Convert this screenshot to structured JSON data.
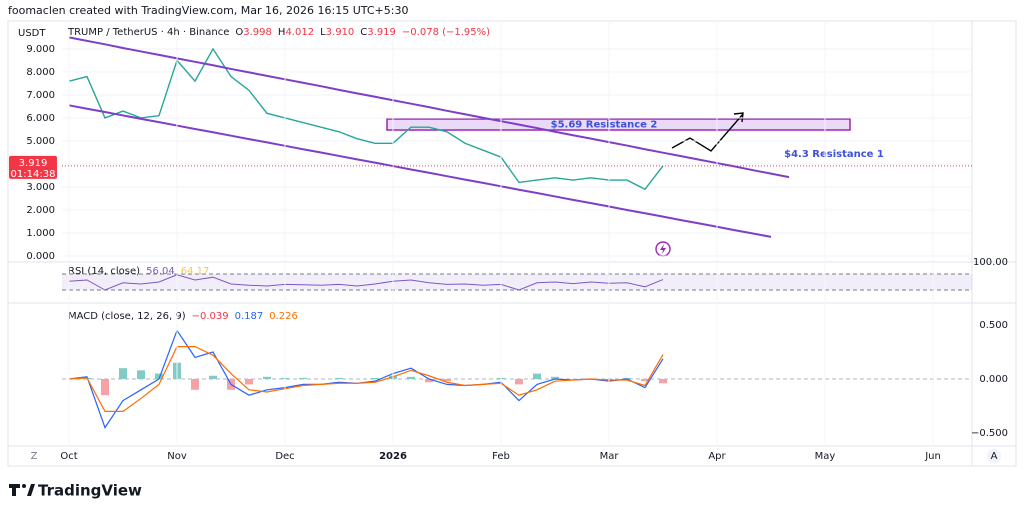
{
  "header": "foomaclen created with TradingView.com, Mar 16, 2026 16:15 UTC+5:30",
  "brand": "TradingView",
  "currency": "USDT",
  "buttons": [
    "Z",
    "A"
  ],
  "chart_data": [
    {
      "type": "line",
      "legend": {
        "symbol": "TRUMP / TetherUS · 4h · Binance",
        "ohlc": [
          {
            "label": "O",
            "value": "3.998"
          },
          {
            "label": "H",
            "value": "4.012"
          },
          {
            "label": "L",
            "value": "3.910"
          },
          {
            "label": "C",
            "value": "3.919"
          }
        ],
        "change": "−0.078 (−1.95%)"
      },
      "categories": [
        "Oct",
        null,
        null,
        null,
        null,
        null,
        "Nov",
        null,
        null,
        null,
        null,
        null,
        "Dec",
        null,
        null,
        null,
        null,
        null,
        "2026",
        null,
        null,
        null,
        null,
        null,
        "Feb",
        null,
        null,
        null,
        null,
        null,
        "Mar",
        null,
        null,
        null,
        null,
        null,
        "Apr",
        null,
        null,
        null,
        null,
        null,
        "May",
        null,
        null,
        null,
        null,
        null,
        "Jun",
        null,
        null
      ],
      "series": [
        {
          "color": "#26a69a",
          "width": 1.4,
          "values": [
            7.6,
            7.8,
            6.0,
            6.3,
            6.0,
            6.1,
            8.5,
            7.6,
            9.0,
            7.8,
            7.2,
            6.2,
            6.0,
            5.8,
            5.6,
            5.4,
            5.1,
            4.9,
            4.9,
            5.6,
            5.6,
            5.4,
            4.9,
            4.6,
            4.3,
            3.2,
            3.3,
            3.4,
            3.3,
            3.4,
            3.3,
            3.3,
            2.9,
            3.919,
            null,
            null,
            null,
            null,
            null,
            null,
            null,
            null,
            null,
            null,
            null,
            null,
            null,
            null,
            null,
            null,
            null
          ]
        },
        {
          "color": "#7e3fc6",
          "width": 2,
          "values": [
            9.5,
            9.35,
            9.2,
            9.04,
            8.89,
            8.74,
            8.59,
            8.44,
            8.29,
            8.13,
            7.98,
            7.83,
            7.68,
            7.53,
            7.38,
            7.22,
            7.07,
            6.92,
            6.77,
            6.62,
            6.47,
            6.31,
            6.16,
            6.01,
            5.86,
            5.71,
            5.56,
            5.4,
            5.25,
            5.1,
            4.95,
            4.8,
            4.64,
            4.49,
            4.34,
            4.19,
            4.04,
            3.89,
            3.73,
            3.58,
            3.43,
            null,
            null,
            null,
            null,
            null,
            null,
            null,
            null,
            null,
            null
          ]
        },
        {
          "color": "#7e3fc6",
          "width": 2,
          "values": [
            6.55,
            6.4,
            6.26,
            6.11,
            5.96,
            5.82,
            5.67,
            5.52,
            5.38,
            5.23,
            5.08,
            4.94,
            4.79,
            4.64,
            4.5,
            4.35,
            4.2,
            4.06,
            3.91,
            3.76,
            3.62,
            3.47,
            3.32,
            3.18,
            3.03,
            2.88,
            2.74,
            2.59,
            2.44,
            2.3,
            2.15,
            2.0,
            1.86,
            1.71,
            1.56,
            1.42,
            1.27,
            1.12,
            0.98,
            0.83,
            null,
            null,
            null,
            null,
            null,
            null,
            null,
            null,
            null,
            null,
            null
          ]
        }
      ],
      "last_price": 3.919,
      "last_price_color": "#f23645",
      "countdown": "01:14:38",
      "annotations": [
        "$5.69 Resistance 2",
        "$4.3 Resistance 1"
      ],
      "ylim": [
        -0.26,
        10.17
      ],
      "yticks": [
        {
          "value": 0,
          "label": "0.000"
        },
        {
          "value": 1,
          "label": "1.000"
        },
        {
          "value": 2,
          "label": "2.000"
        },
        {
          "value": 3,
          "label": "3.000"
        },
        {
          "value": 4,
          "label": "4.000"
        },
        {
          "value": 5,
          "label": "5.000"
        },
        {
          "value": 6,
          "label": "6.000"
        },
        {
          "value": 7,
          "label": "7.000"
        },
        {
          "value": 8,
          "label": "8.000"
        },
        {
          "value": 9,
          "label": "9.000"
        }
      ],
      "grid": true
    },
    {
      "type": "line",
      "legend": {
        "title": "RSI (14, close)",
        "values": [
          "56.04",
          "64.17"
        ],
        "colors": [
          "#7e57c2",
          "#f7c948"
        ]
      },
      "series": [
        {
          "color": "#7e57c2",
          "width": 1,
          "values": [
            52,
            55,
            30,
            48,
            45,
            50,
            68,
            55,
            62,
            45,
            42,
            40,
            44,
            43,
            42,
            44,
            40,
            45,
            52,
            55,
            48,
            44,
            45,
            42,
            44,
            30,
            48,
            50,
            46,
            50,
            47,
            48,
            38,
            56.04
          ]
        }
      ],
      "bands": [
        70,
        30
      ],
      "ylim": [
        0,
        100
      ],
      "yticks": [
        {
          "value": 100,
          "label": "100.00"
        }
      ]
    },
    {
      "type": "macd",
      "legend": {
        "title": "MACD (close, 12, 26, 9)",
        "values": [
          "−0.039",
          "0.187",
          "0.226"
        ],
        "colors": [
          "#f23645",
          "#2962ff",
          "#ff6d00"
        ]
      },
      "histogram": {
        "color": "#80cbc4",
        "negative_color": "#f7a1a6",
        "values": [
          0,
          0.01,
          -0.15,
          0.1,
          0.08,
          0.05,
          0.15,
          -0.1,
          0.03,
          -0.1,
          -0.05,
          0.02,
          0.01,
          0.01,
          0,
          0.01,
          0,
          0.01,
          0.03,
          0.02,
          -0.03,
          -0.02,
          0,
          0,
          0.01,
          -0.05,
          0.05,
          0.02,
          0,
          0,
          -0.01,
          0.01,
          -0.02,
          -0.039
        ]
      },
      "series": [
        {
          "color": "#2962ff",
          "width": 1.2,
          "values": [
            0.0,
            0.02,
            -0.45,
            -0.2,
            -0.1,
            0.0,
            0.45,
            0.2,
            0.25,
            -0.05,
            -0.15,
            -0.1,
            -0.08,
            -0.05,
            -0.05,
            -0.03,
            -0.04,
            -0.02,
            0.05,
            0.1,
            0.0,
            -0.05,
            -0.06,
            -0.05,
            -0.03,
            -0.2,
            -0.05,
            0.0,
            -0.01,
            0.0,
            -0.02,
            0.0,
            -0.08,
            0.187
          ]
        },
        {
          "color": "#ff6d00",
          "width": 1.2,
          "values": [
            0.0,
            0.01,
            -0.3,
            -0.3,
            -0.18,
            -0.05,
            0.3,
            0.3,
            0.22,
            0.05,
            -0.1,
            -0.12,
            -0.09,
            -0.06,
            -0.05,
            -0.04,
            -0.04,
            -0.03,
            0.02,
            0.08,
            0.03,
            -0.03,
            -0.06,
            -0.05,
            -0.04,
            -0.15,
            -0.1,
            -0.02,
            -0.01,
            0.0,
            -0.01,
            -0.01,
            -0.06,
            0.226
          ]
        }
      ],
      "ylim": [
        -0.611,
        0.685
      ],
      "yticks": [
        {
          "value": 0.5,
          "label": "0.500"
        },
        {
          "value": 0,
          "label": "0.000"
        },
        {
          "value": -0.5,
          "label": "−0.500"
        }
      ]
    }
  ]
}
